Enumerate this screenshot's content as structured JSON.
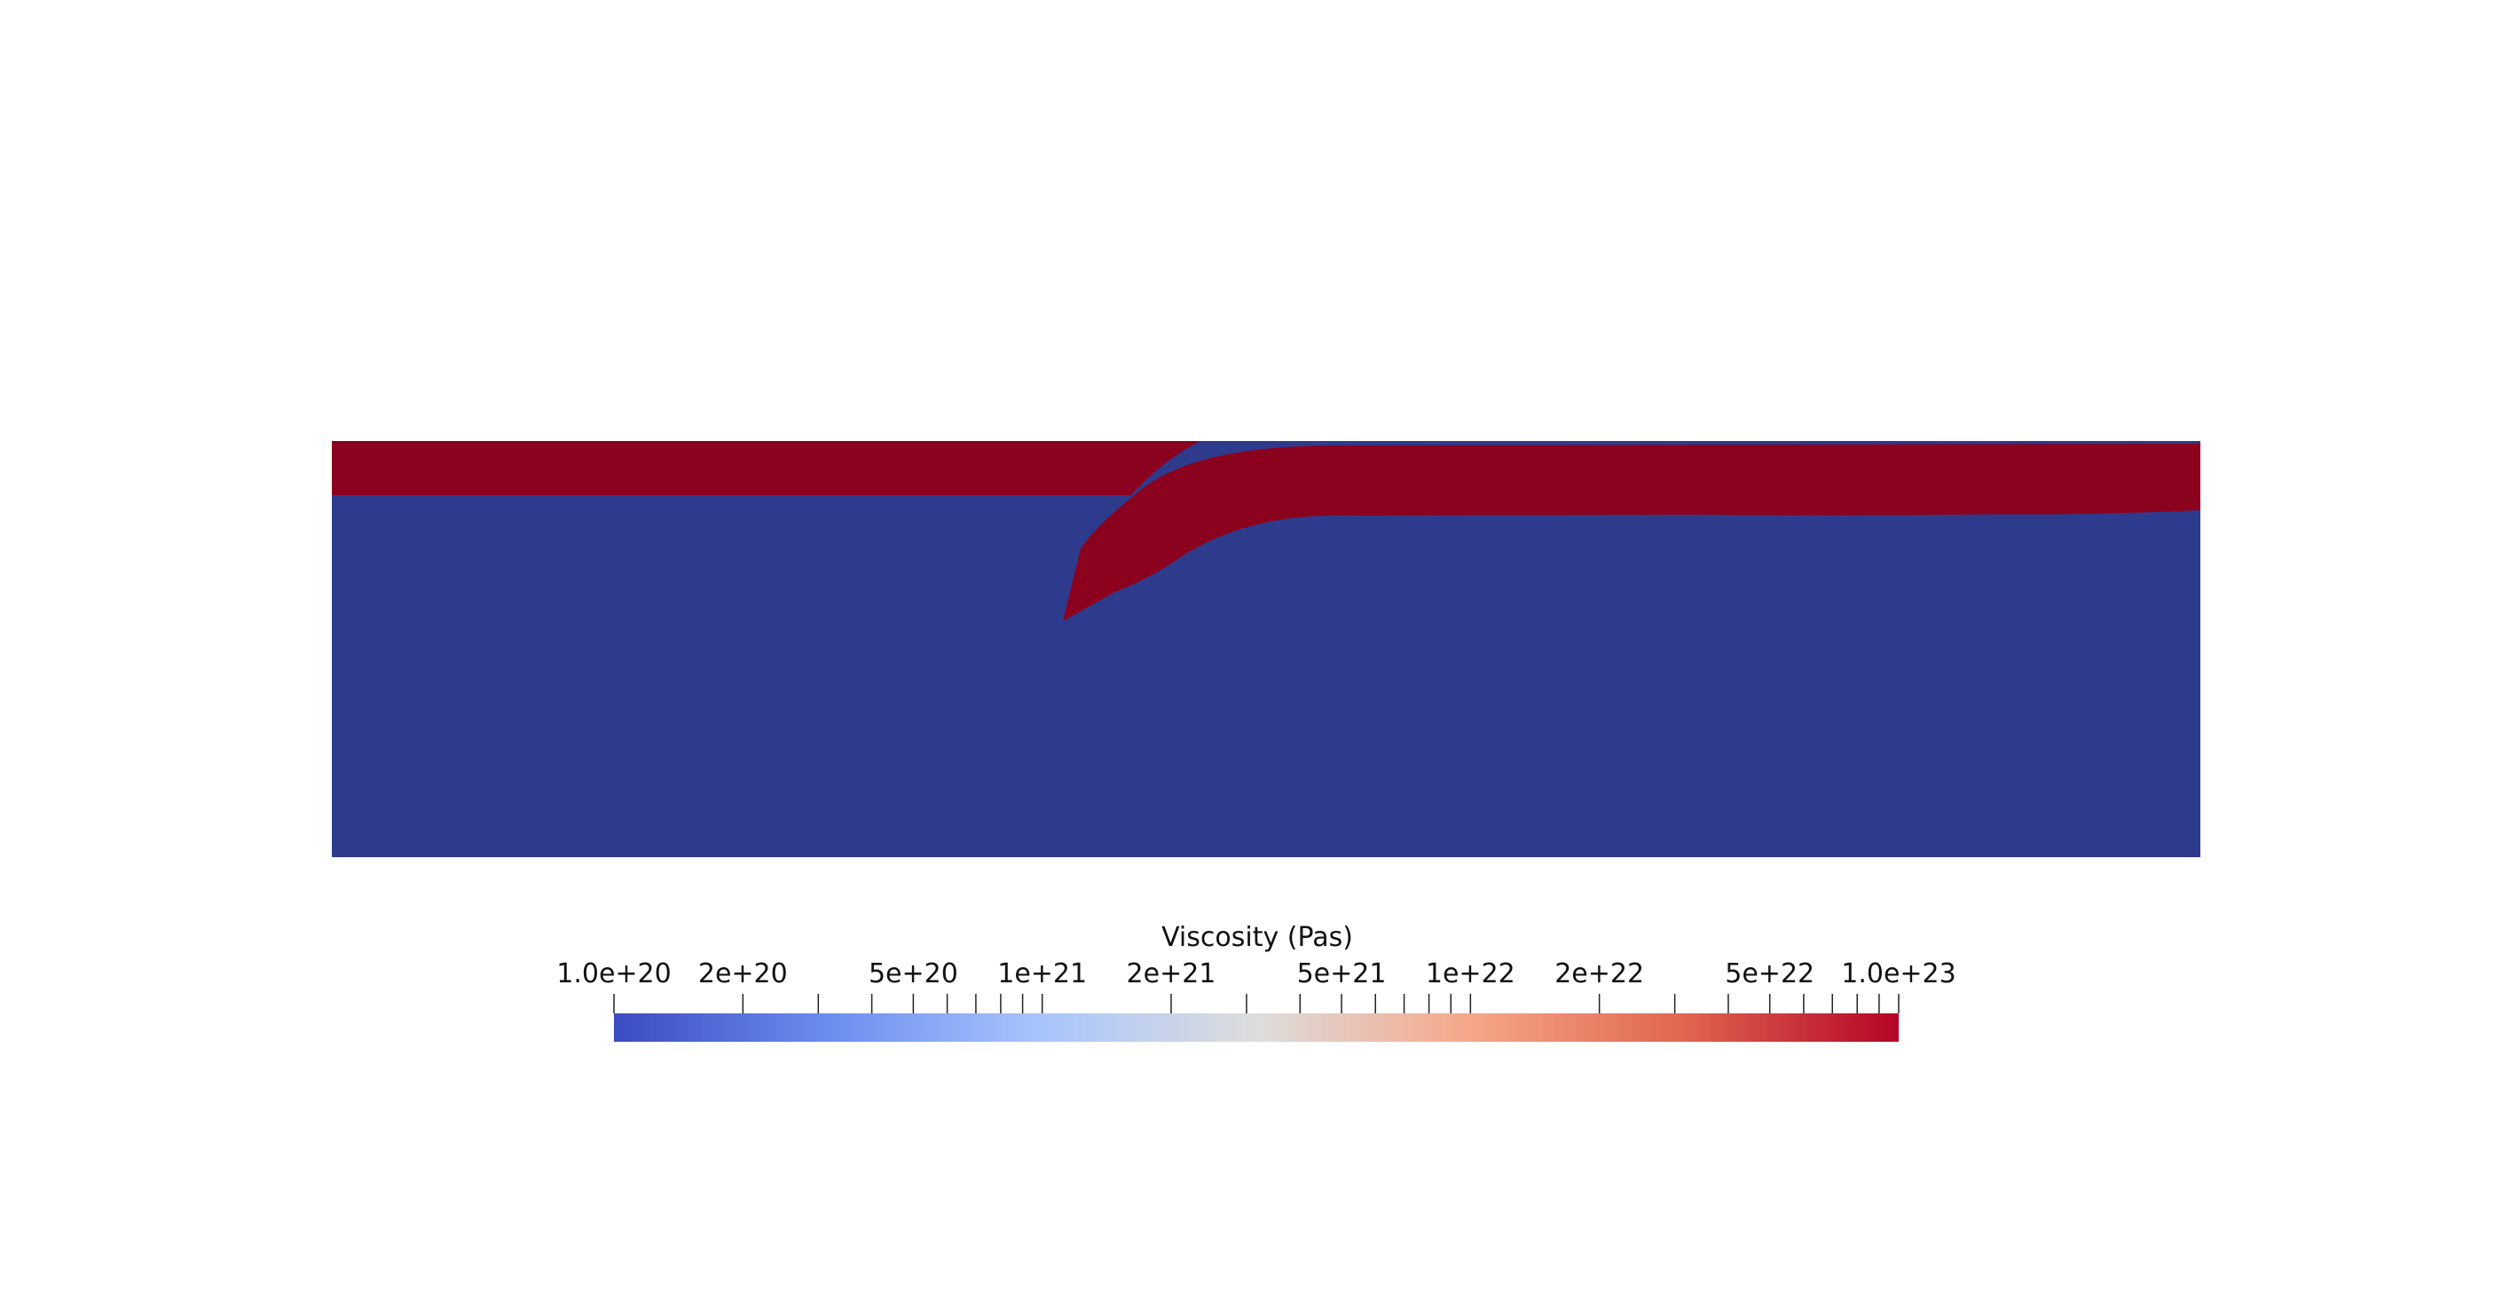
{
  "colorbar": {
    "title": "Viscosity (Pas)",
    "scale": "log",
    "range": [
      1e+20,
      1e+23
    ],
    "colormap": "Cool to Warm",
    "gradient_stops": [
      "#3b4cc0",
      "#6b8df0",
      "#a9c5fc",
      "#dddddd",
      "#f6a789",
      "#e0654f",
      "#b40426"
    ],
    "labeled_ticks": [
      {
        "value": 1e+20,
        "label": "1.0e+20"
      },
      {
        "value": 2e+20,
        "label": "2e+20"
      },
      {
        "value": 5e+20,
        "label": "5e+20"
      },
      {
        "value": 1e+21,
        "label": "1e+21"
      },
      {
        "value": 2e+21,
        "label": "2e+21"
      },
      {
        "value": 5e+21,
        "label": "5e+21"
      },
      {
        "value": 1e+22,
        "label": "1e+22"
      },
      {
        "value": 2e+22,
        "label": "2e+22"
      },
      {
        "value": 5e+22,
        "label": "5e+22"
      },
      {
        "value": 1e+23,
        "label": "1.0e+23"
      }
    ],
    "minor_tick_values": [
      3e+20,
      4e+20,
      6e+20,
      7e+20,
      8e+20,
      9e+20,
      3e+21,
      4e+21,
      6e+21,
      7e+21,
      8e+21,
      9e+21,
      3e+22,
      4e+22,
      6e+22,
      7e+22,
      8e+22,
      9e+22
    ]
  },
  "field": {
    "low_viscosity_color": "#2e3b8d",
    "high_viscosity_color": "#8b021e"
  }
}
